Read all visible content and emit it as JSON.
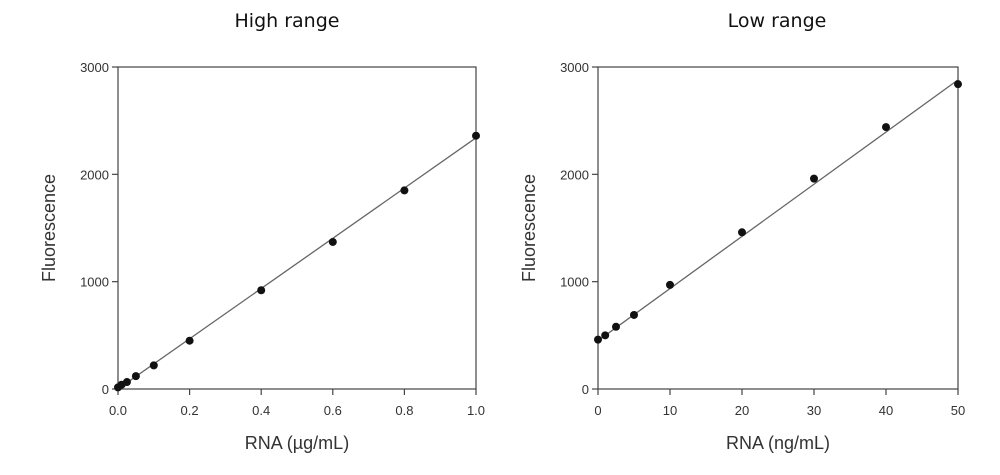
{
  "chart_data": [
    {
      "type": "scatter",
      "title": "High range",
      "xlabel": "RNA (µg/mL)",
      "ylabel": "Fluorescence",
      "xlim": [
        0,
        1.0
      ],
      "ylim": [
        0,
        3000
      ],
      "x_ticks": [
        "0.0",
        "0.2",
        "0.4",
        "0.6",
        "0.8",
        "1.0"
      ],
      "y_ticks": [
        "0",
        "1000",
        "2000",
        "3000"
      ],
      "series": [
        {
          "x": [
            0.0,
            0.01,
            0.025,
            0.05,
            0.1,
            0.2,
            0.4,
            0.6,
            0.8,
            1.0
          ],
          "y": [
            15,
            40,
            65,
            120,
            220,
            450,
            920,
            1370,
            1850,
            2360
          ]
        }
      ],
      "fit_line": {
        "x": [
          0,
          1.0
        ],
        "y": [
          0,
          2340
        ]
      }
    },
    {
      "type": "scatter",
      "title": "Low range",
      "xlabel": "RNA (ng/mL)",
      "ylabel": "Fluorescence",
      "xlim": [
        0,
        50
      ],
      "ylim": [
        0,
        3000
      ],
      "x_ticks": [
        "0",
        "10",
        "20",
        "30",
        "40",
        "50"
      ],
      "y_ticks": [
        "0",
        "1000",
        "2000",
        "3000"
      ],
      "series": [
        {
          "x": [
            0,
            1,
            2.5,
            5,
            10,
            20,
            30,
            40,
            50
          ],
          "y": [
            460,
            500,
            580,
            690,
            970,
            1460,
            1960,
            2440,
            2840
          ]
        }
      ],
      "fit_line": {
        "x": [
          0,
          50
        ],
        "y": [
          450,
          2880
        ]
      }
    }
  ]
}
